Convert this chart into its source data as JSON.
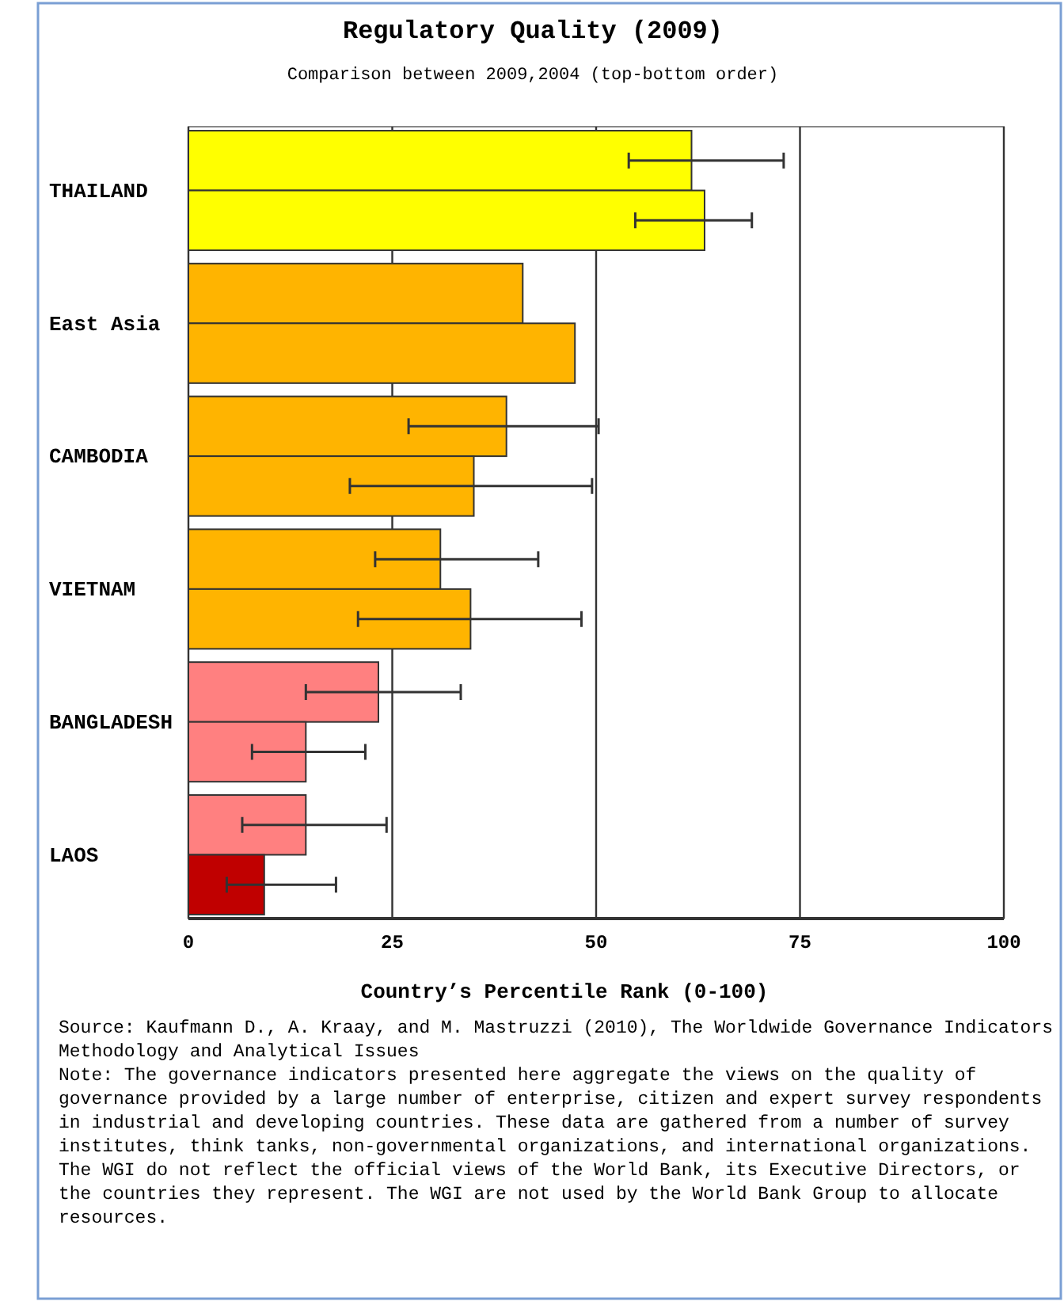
{
  "chart_data": {
    "type": "bar",
    "orientation": "horizontal",
    "title": "Regulatory Quality (2009)",
    "subtitle": "Comparison between 2009,2004 (top-bottom order)",
    "xlabel": "Country’s Percentile Rank (0-100)",
    "categories": [
      "THAILAND",
      "East Asia",
      "CAMBODIA",
      "VIETNAM",
      "BANGLADESH",
      "LAOS"
    ],
    "series": [
      {
        "colors": [
          "#ffff00",
          "#ffb400",
          "#ffb400",
          "#ffb400",
          "#ff8080",
          "#ff8080"
        ],
        "values": [
          61.7,
          41.0,
          39.0,
          30.9,
          23.3,
          14.4
        ],
        "errors": [
          [
            54.0,
            73.0
          ],
          null,
          [
            27.0,
            50.3
          ],
          [
            22.9,
            42.9
          ],
          [
            14.4,
            33.4
          ],
          [
            6.6,
            24.3
          ]
        ]
      },
      {
        "colors": [
          "#ffff00",
          "#ffb400",
          "#ffb400",
          "#ffb400",
          "#ff8080",
          "#c00000"
        ],
        "values": [
          63.3,
          47.4,
          35.0,
          34.6,
          14.4,
          9.3
        ],
        "errors": [
          [
            54.8,
            69.1
          ],
          null,
          [
            19.8,
            49.5
          ],
          [
            20.8,
            48.2
          ],
          [
            7.8,
            21.7
          ],
          [
            4.7,
            18.1
          ]
        ]
      }
    ],
    "xlim": [
      0,
      100
    ],
    "xticks": [
      0,
      25,
      50,
      75,
      100
    ],
    "grid": "x",
    "annotations": [
      "Source: Kaufmann D., A. Kraay, and M. Mastruzzi (2010), The Worldwide Governance Indicators Methodology and Analytical Issues",
      "Note: The governance indicators presented here aggregate the views on the quality of governance provided by a large number of enterprise, citizen and expert survey respondents in industrial and developing countries. These data are gathered from a number of survey institutes, think tanks, non-governmental organizations, and international organizations. The WGI do not reflect the official views of the World Bank, its Executive Directors, or the countries they represent. The WGI are not used by the World Bank Group to allocate resources."
    ]
  }
}
